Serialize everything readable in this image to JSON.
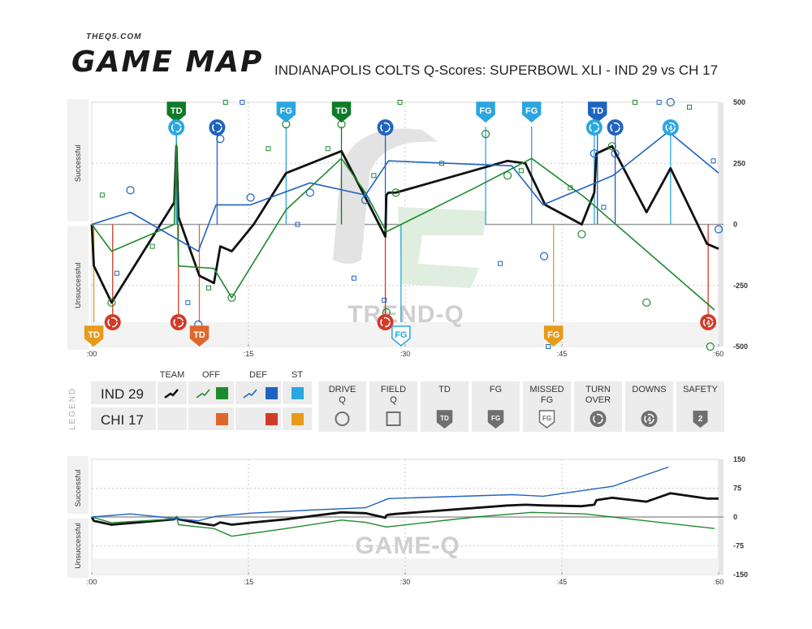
{
  "header": {
    "site": "THEQ5.COM",
    "brand": "GAME MAP",
    "title": "INDIANAPOLIS COLTS Q-Scores: SUPERBOWL XLI - IND 29 vs CH 17"
  },
  "colors": {
    "team": "#111111",
    "ind_off": "#1e8a2e",
    "ind_def": "#1f63c0",
    "ind_st": "#2aa6e0",
    "chi_off": "#e0672a",
    "chi_def": "#d13b28",
    "chi_st": "#e89a1a",
    "ind_td": "#0f7a2a"
  },
  "legend": {
    "word": "LEGEND",
    "col_team": "TEAM",
    "col_off": "OFF",
    "col_def": "DEF",
    "col_st": "ST",
    "row_ind": "IND 29",
    "row_chi": "CHI 17",
    "symbols": [
      {
        "label": "DRIVE\nQ",
        "icon": "circle-icon"
      },
      {
        "label": "FIELD\nQ",
        "icon": "square-icon"
      },
      {
        "label": "TD",
        "icon": "td-shield-icon"
      },
      {
        "label": "FG",
        "icon": "fg-shield-icon"
      },
      {
        "label": "MISSED\nFG",
        "icon": "missed-fg-shield-icon"
      },
      {
        "label": "TURN\nOVER",
        "icon": "turnover-icon"
      },
      {
        "label": "DOWNS",
        "icon": "downs-icon"
      },
      {
        "label": "SAFETY",
        "icon": "safety-icon",
        "glyph": "2"
      }
    ]
  },
  "chart_data": [
    {
      "type": "line",
      "name": "Trend-Q",
      "watermark": "TREND-Q",
      "ylabel_top": "Successful",
      "ylabel_bottom": "Unsuccessful",
      "xlim": [
        0,
        60
      ],
      "ylim": [
        -500,
        500
      ],
      "x_ticks": [
        ":00",
        ":15",
        ":30",
        ":45",
        ":60"
      ],
      "x_tick_values": [
        0,
        15,
        30,
        45,
        60
      ],
      "y_ticks": [
        500,
        250,
        0,
        -250,
        -500
      ],
      "series": [
        {
          "name": "TEAM",
          "key": "team",
          "color": "#111111",
          "x": [
            0,
            0.2,
            1.9,
            7.9,
            8.1,
            8.3,
            10.3,
            11.7,
            12.3,
            13.4,
            15.5,
            18.6,
            23.9,
            26.2,
            28.1,
            28.2,
            28.4,
            29.1,
            39.8,
            41.5,
            43.4,
            46.9,
            48.1,
            48.3,
            49.8,
            53.1,
            55.4,
            58.9,
            60
          ],
          "y": [
            0,
            -170,
            -320,
            90,
            320,
            30,
            -210,
            -240,
            -90,
            -110,
            0,
            210,
            300,
            110,
            -50,
            120,
            130,
            130,
            260,
            250,
            80,
            0,
            130,
            290,
            320,
            50,
            230,
            -80,
            -100
          ]
        },
        {
          "name": "OFF",
          "key": "ind_off",
          "color": "#1e8a2e",
          "x": [
            0,
            1.9,
            7.9,
            8.1,
            8.3,
            11.7,
            13.4,
            18.6,
            23.9,
            26.2,
            28.2,
            36.7,
            42.1,
            47.2,
            59.6
          ],
          "y": [
            0,
            -110,
            0,
            330,
            -170,
            -180,
            -300,
            60,
            270,
            130,
            -30,
            150,
            270,
            110,
            -350
          ]
        },
        {
          "name": "DEF",
          "key": "ind_def",
          "color": "#1f63c0",
          "x": [
            0,
            3.7,
            10.2,
            11.9,
            15.2,
            20.9,
            26.2,
            28.4,
            40.2,
            43.2,
            49.9,
            55.2,
            60
          ],
          "y": [
            0,
            50,
            -110,
            80,
            80,
            170,
            120,
            260,
            240,
            80,
            200,
            380,
            210
          ]
        }
      ],
      "events": [
        {
          "kind": "TD",
          "team": "IND",
          "side": "top",
          "x": 8.1,
          "color": "#0f7a2a"
        },
        {
          "kind": "turnover",
          "team": "IND",
          "side": "top",
          "x": 8.1,
          "color": "#2aa6e0"
        },
        {
          "kind": "turnover",
          "team": "IND",
          "side": "top",
          "x": 12.0,
          "color": "#1f63c0"
        },
        {
          "kind": "FG",
          "team": "IND",
          "side": "top",
          "x": 18.6,
          "color": "#2aa6e0"
        },
        {
          "kind": "TD",
          "team": "IND",
          "side": "top",
          "x": 23.9,
          "color": "#0f7a2a"
        },
        {
          "kind": "turnover",
          "team": "IND",
          "side": "top",
          "x": 28.1,
          "color": "#1f63c0"
        },
        {
          "kind": "FG",
          "team": "IND",
          "side": "top",
          "x": 37.7,
          "color": "#2aa6e0"
        },
        {
          "kind": "FG",
          "team": "IND",
          "side": "top",
          "x": 42.1,
          "color": "#2aa6e0"
        },
        {
          "kind": "TD",
          "team": "IND",
          "side": "top",
          "x": 48.4,
          "color": "#1f63c0"
        },
        {
          "kind": "turnover",
          "team": "IND",
          "side": "top",
          "x": 48.1,
          "color": "#2aa6e0"
        },
        {
          "kind": "turnover",
          "team": "IND",
          "side": "top",
          "x": 50.1,
          "color": "#1f63c0"
        },
        {
          "kind": "downs",
          "team": "IND",
          "side": "top",
          "x": 55.4,
          "color": "#2aa6e0"
        },
        {
          "kind": "TD",
          "team": "CHI",
          "side": "bottom",
          "x": 0.2,
          "color": "#e89a1a"
        },
        {
          "kind": "turnover",
          "team": "CHI",
          "side": "bottom",
          "x": 2.0,
          "color": "#d13b28"
        },
        {
          "kind": "turnover",
          "team": "CHI",
          "side": "bottom",
          "x": 8.3,
          "color": "#d13b28"
        },
        {
          "kind": "TD",
          "team": "CHI",
          "side": "bottom",
          "x": 10.3,
          "color": "#e0672a"
        },
        {
          "kind": "turnover",
          "team": "CHI",
          "side": "bottom",
          "x": 28.1,
          "color": "#d13b28"
        },
        {
          "kind": "missed-FG",
          "team": "CHI",
          "side": "bottom",
          "x": 29.6,
          "color": "#2aa6e0"
        },
        {
          "kind": "FG",
          "team": "CHI",
          "side": "bottom",
          "x": 44.2,
          "color": "#e89a1a"
        },
        {
          "kind": "downs",
          "team": "CHI",
          "side": "bottom",
          "x": 59.0,
          "color": "#d13b28"
        }
      ],
      "drive_q": [
        {
          "x": 1.9,
          "y": -320,
          "color": "#1e8a2e"
        },
        {
          "x": 3.7,
          "y": 140,
          "color": "#1f63c0"
        },
        {
          "x": 10.2,
          "y": -410,
          "color": "#1f63c0"
        },
        {
          "x": 12.3,
          "y": 350,
          "color": "#1f63c0"
        },
        {
          "x": 13.4,
          "y": -300,
          "color": "#1e8a2e"
        },
        {
          "x": 15.2,
          "y": 110,
          "color": "#1f63c0"
        },
        {
          "x": 18.6,
          "y": 410,
          "color": "#1e8a2e"
        },
        {
          "x": 20.9,
          "y": 130,
          "color": "#1f63c0"
        },
        {
          "x": 23.9,
          "y": 410,
          "color": "#1e8a2e"
        },
        {
          "x": 26.2,
          "y": 100,
          "color": "#1f63c0"
        },
        {
          "x": 28.2,
          "y": -360,
          "color": "#1e8a2e"
        },
        {
          "x": 29.1,
          "y": 130,
          "color": "#1e8a2e"
        },
        {
          "x": 37.7,
          "y": 370,
          "color": "#1e8a2e"
        },
        {
          "x": 39.8,
          "y": 200,
          "color": "#1e8a2e"
        },
        {
          "x": 43.3,
          "y": -130,
          "color": "#1f63c0"
        },
        {
          "x": 46.9,
          "y": -40,
          "color": "#1e8a2e"
        },
        {
          "x": 48.1,
          "y": 290,
          "color": "#1f63c0"
        },
        {
          "x": 49.8,
          "y": 320,
          "color": "#1e8a2e"
        },
        {
          "x": 50.1,
          "y": 290,
          "color": "#1f63c0"
        },
        {
          "x": 53.1,
          "y": -320,
          "color": "#1e8a2e"
        },
        {
          "x": 55.4,
          "y": 500,
          "color": "#1f63c0"
        },
        {
          "x": 59.2,
          "y": -500,
          "color": "#1e8a2e"
        },
        {
          "x": 60,
          "y": -20,
          "color": "#1f63c0"
        }
      ],
      "field_q": [
        {
          "x": 1.0,
          "y": 120,
          "color": "#1e8a2e"
        },
        {
          "x": 2.4,
          "y": -200,
          "color": "#1f63c0"
        },
        {
          "x": 5.8,
          "y": -90,
          "color": "#1e8a2e"
        },
        {
          "x": 9.2,
          "y": -320,
          "color": "#1f63c0"
        },
        {
          "x": 11.2,
          "y": -260,
          "color": "#1e8a2e"
        },
        {
          "x": 12.8,
          "y": 500,
          "color": "#1e8a2e"
        },
        {
          "x": 14.4,
          "y": 500,
          "color": "#1f63c0"
        },
        {
          "x": 16.9,
          "y": 310,
          "color": "#1e8a2e"
        },
        {
          "x": 19.7,
          "y": 0,
          "color": "#1f63c0"
        },
        {
          "x": 22.6,
          "y": 310,
          "color": "#1e8a2e"
        },
        {
          "x": 25.1,
          "y": -220,
          "color": "#1f63c0"
        },
        {
          "x": 27.0,
          "y": 200,
          "color": "#1e8a2e"
        },
        {
          "x": 28.0,
          "y": -310,
          "color": "#1f63c0"
        },
        {
          "x": 29.5,
          "y": 500,
          "color": "#1e8a2e"
        },
        {
          "x": 33.5,
          "y": 250,
          "color": "#1e8a2e"
        },
        {
          "x": 39.1,
          "y": -160,
          "color": "#1f63c0"
        },
        {
          "x": 41.1,
          "y": 220,
          "color": "#1e8a2e"
        },
        {
          "x": 43.7,
          "y": -500,
          "color": "#1f63c0"
        },
        {
          "x": 45.8,
          "y": 150,
          "color": "#1e8a2e"
        },
        {
          "x": 49.0,
          "y": 70,
          "color": "#1f63c0"
        },
        {
          "x": 52.0,
          "y": 500,
          "color": "#1e8a2e"
        },
        {
          "x": 54.3,
          "y": 500,
          "color": "#1f63c0"
        },
        {
          "x": 57.2,
          "y": 480,
          "color": "#1e8a2e"
        },
        {
          "x": 59.5,
          "y": 260,
          "color": "#1f63c0"
        }
      ]
    },
    {
      "type": "line",
      "name": "Game-Q",
      "watermark": "GAME-Q",
      "ylabel_top": "Successful",
      "ylabel_bottom": "Unsuccessful",
      "xlim": [
        0,
        60
      ],
      "ylim": [
        -150,
        150
      ],
      "x_ticks": [
        ":00",
        ":15",
        ":30",
        ":45",
        ":60"
      ],
      "x_tick_values": [
        0,
        15,
        30,
        45,
        60
      ],
      "y_ticks": [
        150,
        75,
        0,
        -75,
        -150
      ],
      "series": [
        {
          "name": "TEAM",
          "key": "team",
          "color": "#111111",
          "x": [
            0,
            0.2,
            1.9,
            7.9,
            8.1,
            8.3,
            10.3,
            11.7,
            12.3,
            13.4,
            15.5,
            18.6,
            23.9,
            26.2,
            28.1,
            28.2,
            28.4,
            29.1,
            39.8,
            41.5,
            43.4,
            46.9,
            48.1,
            48.3,
            49.8,
            53.1,
            55.4,
            58.9,
            60
          ],
          "y": [
            0,
            -10,
            -20,
            -6,
            -2,
            -6,
            -16,
            -22,
            -14,
            -20,
            -14,
            -6,
            12,
            10,
            -2,
            4,
            6,
            8,
            30,
            32,
            30,
            28,
            32,
            44,
            50,
            40,
            62,
            48,
            48
          ]
        },
        {
          "name": "OFF",
          "key": "ind_off",
          "color": "#1e8a2e",
          "x": [
            0,
            1.9,
            7.9,
            8.1,
            8.3,
            11.7,
            13.4,
            18.6,
            23.9,
            26.2,
            28.2,
            36.7,
            42.1,
            47.2,
            59.6
          ],
          "y": [
            0,
            -15,
            -5,
            2,
            -20,
            -30,
            -50,
            -30,
            -8,
            -14,
            -26,
            0,
            12,
            8,
            -30
          ]
        },
        {
          "name": "DEF",
          "key": "ind_def",
          "color": "#1f63c0",
          "x": [
            0,
            3.7,
            10.2,
            11.9,
            15.2,
            20.9,
            26.2,
            28.4,
            40.2,
            43.2,
            49.9,
            55.2
          ],
          "y": [
            0,
            8,
            -10,
            2,
            10,
            18,
            24,
            48,
            58,
            54,
            80,
            130
          ]
        }
      ]
    }
  ]
}
